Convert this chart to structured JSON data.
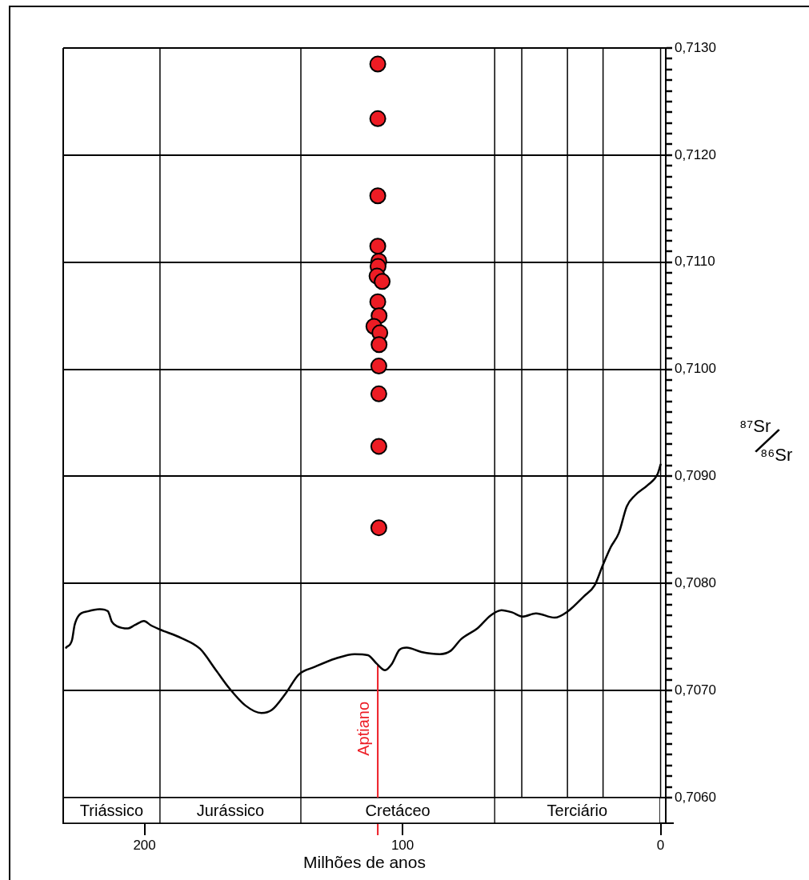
{
  "chart_data": [
    {
      "type": "scatter",
      "ylabel": "⁸⁷Sr/⁸⁶Sr",
      "xlim": [
        231.5,
        -2
      ],
      "ylim": [
        0.706,
        0.713
      ],
      "yticks": [
        {
          "value": 0.706,
          "label": "0,7060"
        },
        {
          "value": 0.7061,
          "label": null
        },
        {
          "value": 0.7062,
          "label": null
        },
        {
          "value": 0.7063,
          "label": null
        },
        {
          "value": 0.7064,
          "label": null
        },
        {
          "value": 0.7065,
          "label": null
        },
        {
          "value": 0.7066,
          "label": null
        },
        {
          "value": 0.7067,
          "label": null
        },
        {
          "value": 0.7068,
          "label": null
        },
        {
          "value": 0.7069,
          "label": null
        },
        {
          "value": 0.707,
          "label": "0,7070"
        },
        {
          "value": 0.7071,
          "label": null
        },
        {
          "value": 0.7072,
          "label": null
        },
        {
          "value": 0.7073,
          "label": null
        },
        {
          "value": 0.7074,
          "label": null
        },
        {
          "value": 0.7075,
          "label": null
        },
        {
          "value": 0.7076,
          "label": null
        },
        {
          "value": 0.7077,
          "label": null
        },
        {
          "value": 0.7078,
          "label": null
        },
        {
          "value": 0.7079,
          "label": null
        },
        {
          "value": 0.708,
          "label": "0,7080"
        },
        {
          "value": 0.7081,
          "label": null
        },
        {
          "value": 0.7082,
          "label": null
        },
        {
          "value": 0.7083,
          "label": null
        },
        {
          "value": 0.7084,
          "label": null
        },
        {
          "value": 0.7085,
          "label": null
        },
        {
          "value": 0.7086,
          "label": null
        },
        {
          "value": 0.7087,
          "label": null
        },
        {
          "value": 0.7088,
          "label": null
        },
        {
          "value": 0.7089,
          "label": null
        },
        {
          "value": 0.709,
          "label": "0,7090"
        },
        {
          "value": 0.7091,
          "label": null
        },
        {
          "value": 0.7092,
          "label": null
        },
        {
          "value": 0.7093,
          "label": null
        },
        {
          "value": 0.7094,
          "label": null
        },
        {
          "value": 0.7095,
          "label": null
        },
        {
          "value": 0.7096,
          "label": null
        },
        {
          "value": 0.7097,
          "label": null
        },
        {
          "value": 0.7098,
          "label": null
        },
        {
          "value": 0.7099,
          "label": null
        },
        {
          "value": 0.71,
          "label": "0,7100"
        },
        {
          "value": 0.7101,
          "label": null
        },
        {
          "value": 0.7102,
          "label": null
        },
        {
          "value": 0.7103,
          "label": null
        },
        {
          "value": 0.7104,
          "label": null
        },
        {
          "value": 0.7105,
          "label": null
        },
        {
          "value": 0.7106,
          "label": null
        },
        {
          "value": 0.7107,
          "label": null
        },
        {
          "value": 0.7108,
          "label": null
        },
        {
          "value": 0.7109,
          "label": null
        },
        {
          "value": 0.711,
          "label": "0,7110"
        },
        {
          "value": 0.7111,
          "label": null
        },
        {
          "value": 0.7112,
          "label": null
        },
        {
          "value": 0.7113,
          "label": null
        },
        {
          "value": 0.7114,
          "label": null
        },
        {
          "value": 0.7115,
          "label": null
        },
        {
          "value": 0.7116,
          "label": null
        },
        {
          "value": 0.7117,
          "label": null
        },
        {
          "value": 0.7118,
          "label": null
        },
        {
          "value": 0.7119,
          "label": null
        },
        {
          "value": 0.712,
          "label": "0,7120"
        },
        {
          "value": 0.7121,
          "label": null
        },
        {
          "value": 0.7122,
          "label": null
        },
        {
          "value": 0.7123,
          "label": null
        },
        {
          "value": 0.7124,
          "label": null
        },
        {
          "value": 0.7125,
          "label": null
        },
        {
          "value": 0.7126,
          "label": null
        },
        {
          "value": 0.7127,
          "label": null
        },
        {
          "value": 0.7128,
          "label": null
        },
        {
          "value": 0.7129,
          "label": null
        },
        {
          "value": 0.713,
          "label": "0,7130"
        }
      ],
      "grid": "y",
      "tick_labels": "y",
      "series": [
        {
          "type": "line",
          "color": "#000000",
          "marker": "none",
          "x": [
            230.4,
            228.1,
            227.1,
            225.5,
            221.9,
            217.3,
            214.2,
            212.6,
            210.6,
            206.4,
            203.8,
            200.2,
            197.6,
            194.0,
            185.7,
            178.5,
            172.3,
            167.1,
            160.9,
            154.7,
            150.6,
            145.4,
            140.2,
            134.1,
            125.8,
            118.6,
            113.4,
            110.0,
            106.8,
            104.1,
            101.2,
            98.4,
            92.7,
            85.5,
            81.4,
            77.3,
            71.0,
            65.9,
            61.7,
            57.6,
            53.5,
            48.3,
            41.1,
            35.9,
            29.7,
            25.6,
            22.4,
            19.3,
            16.2,
            13.1,
            10.0,
            4.9,
            1.2,
            0
          ],
          "values": [
            0.7074,
            0.70747,
            0.70761,
            0.7077,
            0.70774,
            0.70776,
            0.70774,
            0.70764,
            0.7076,
            0.70758,
            0.70761,
            0.70765,
            0.70761,
            0.70757,
            0.70749,
            0.70739,
            0.70719,
            0.70702,
            0.70686,
            0.70679,
            0.70682,
            0.70697,
            0.70715,
            0.70722,
            0.7073,
            0.70734,
            0.70733,
            0.70725,
            0.70719,
            0.70725,
            0.70738,
            0.7074,
            0.70736,
            0.70734,
            0.70737,
            0.70748,
            0.70758,
            0.7077,
            0.70775,
            0.70773,
            0.70769,
            0.70772,
            0.70768,
            0.70774,
            0.70788,
            0.70798,
            0.70817,
            0.70834,
            0.70847,
            0.70872,
            0.70882,
            0.70892,
            0.70902,
            0.70911
          ]
        },
        {
          "color": "#ed1c24",
          "marker": "circle",
          "x": [
            109.6,
            109.6,
            109.6,
            109.6,
            109.2,
            109.5,
            109.9,
            107.9,
            109.6,
            109.1,
            111.1,
            108.8,
            109.1,
            109.2,
            109.2,
            109.2,
            109.2
          ],
          "values": [
            0.71285,
            0.71234,
            0.71162,
            0.71115,
            0.71101,
            0.71096,
            0.71087,
            0.71082,
            0.71063,
            0.7105,
            0.7104,
            0.71034,
            0.71023,
            0.71003,
            0.70977,
            0.70928,
            0.70852
          ]
        }
      ],
      "ref_lines": [
        {
          "axis": "x",
          "value": 194,
          "color": "#000000"
        },
        {
          "axis": "x",
          "value": 139.4,
          "color": "#000000"
        },
        {
          "axis": "x",
          "value": 64.3,
          "color": "#000000"
        },
        {
          "axis": "x",
          "value": 53.8,
          "color": "#000000"
        },
        {
          "axis": "x",
          "value": 36.1,
          "color": "#000000"
        },
        {
          "axis": "x",
          "value": 22.3,
          "color": "#000000"
        },
        {
          "axis": "x",
          "value": 0,
          "color": "#000000"
        },
        {
          "axis": "x",
          "value": 109.6,
          "label": "Aptiano",
          "color": "#ed1c24"
        }
      ]
    },
    {
      "type": "bar",
      "orientation": "horizontal",
      "stacked": true,
      "categories": [
        null
      ],
      "xlim": [
        231.5,
        -2
      ],
      "xticks": [
        200,
        100,
        0
      ],
      "xlabel": "Milhões de anos",
      "tick_labels": "x",
      "series": [
        {
          "name": "Terciário",
          "color": "#ffffff",
          "values": [
            64.3
          ]
        },
        {
          "name": "Cretáceo",
          "color": "#ffffff",
          "values": [
            75.1
          ]
        },
        {
          "name": "Jurássico",
          "color": "#ffffff",
          "values": [
            54.6
          ]
        },
        {
          "name": "Triássico",
          "color": "#ffffff",
          "values": [
            37.5
          ]
        }
      ]
    }
  ]
}
